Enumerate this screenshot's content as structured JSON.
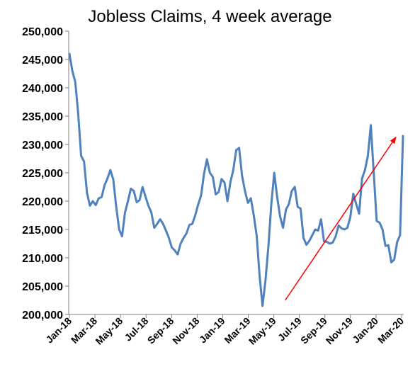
{
  "chart_data": {
    "type": "line",
    "title": "Jobless Claims, 4 week average",
    "xlabel": "",
    "ylabel": "",
    "ylim": [
      200000,
      250000
    ],
    "y_ticks": [
      "200,000",
      "205,000",
      "210,000",
      "215,000",
      "220,000",
      "225,000",
      "230,000",
      "235,000",
      "240,000",
      "245,000",
      "250,000"
    ],
    "x_ticks": [
      "Jan-18",
      "Mar-18",
      "May-18",
      "Jul-18",
      "Sep-18",
      "Nov-18",
      "Jan-19",
      "Mar-19",
      "May-19",
      "Jul-19",
      "Sep-19",
      "Nov-19",
      "Jan-20",
      "Mar-20"
    ],
    "grid": false,
    "legend": "none",
    "series": [
      {
        "color": "#4f81bd",
        "values": [
          246000,
          243000,
          241000,
          235500,
          228000,
          227000,
          221500,
          219200,
          220000,
          219300,
          220500,
          220700,
          222800,
          224000,
          225500,
          223800,
          219000,
          215000,
          213800,
          218000,
          220000,
          222200,
          221800,
          219800,
          220200,
          222500,
          220800,
          219200,
          218000,
          215300,
          216000,
          216800,
          216000,
          214800,
          213500,
          211800,
          211300,
          210600,
          212500,
          213500,
          214300,
          215800,
          216000,
          217500,
          219400,
          221000,
          224800,
          227400,
          225000,
          224300,
          221200,
          221600,
          223900,
          223300,
          220000,
          223300,
          225500,
          229000,
          229400,
          224500,
          221800,
          219700,
          220500,
          217500,
          213900,
          206800,
          201500,
          206000,
          212000,
          219500,
          225000,
          220700,
          217300,
          215300,
          218500,
          219500,
          221800,
          222500,
          219000,
          218700,
          213500,
          212300,
          213000,
          214000,
          215000,
          214800,
          216800,
          212900,
          212800,
          212500,
          212700,
          213800,
          215700,
          215200,
          215000,
          215300,
          217200,
          221300,
          219500,
          217800,
          224000,
          225500,
          228000,
          233400,
          225000,
          216500,
          216200,
          215000,
          212100,
          212200,
          209200,
          209700,
          212800,
          214000,
          231500
        ]
      }
    ],
    "annotation": {
      "type": "arrow",
      "color": "#ff0000",
      "start": {
        "x": "May-19",
        "y": 202500
      },
      "end": {
        "x": "Mar-20",
        "y": 231300
      }
    }
  }
}
